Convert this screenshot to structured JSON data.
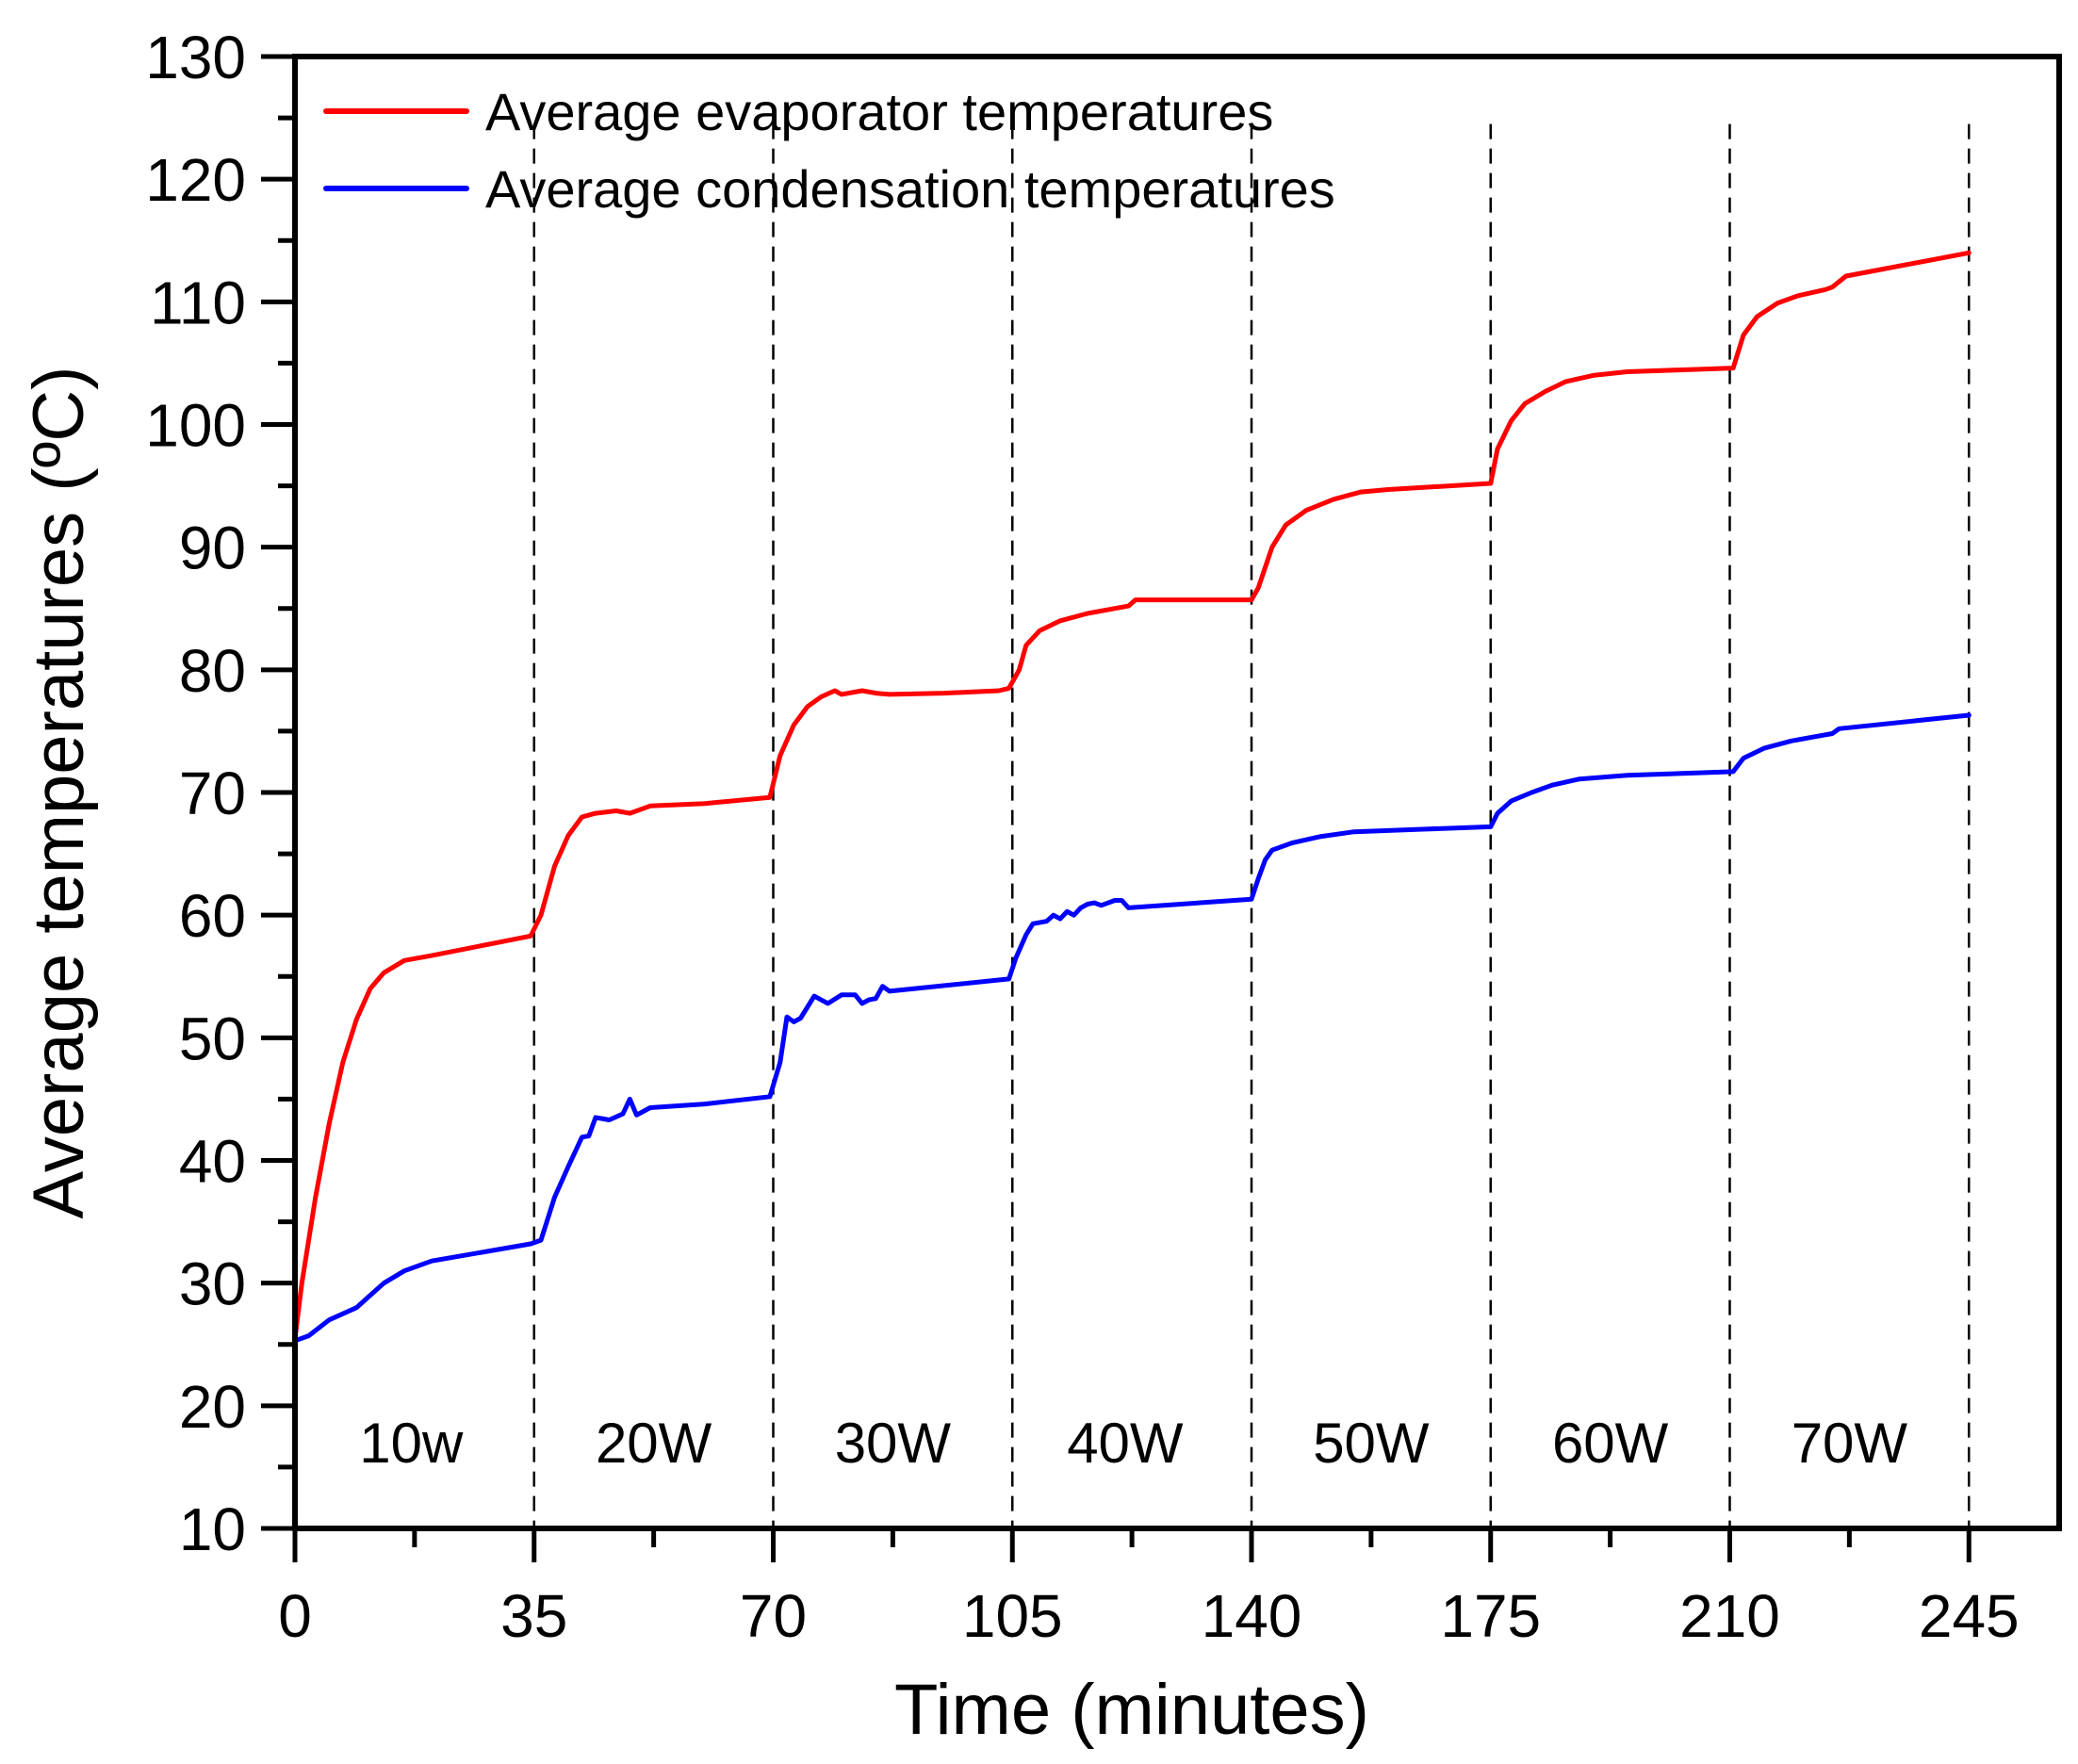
{
  "chart_data": {
    "type": "line",
    "title": "",
    "xlabel": "Time (minutes)",
    "ylabel": "Average temperatures (ºC)",
    "xlim": [
      0,
      255
    ],
    "ylim": [
      10,
      130
    ],
    "xticks": [
      0,
      35,
      70,
      105,
      140,
      175,
      210,
      245
    ],
    "xtick_labels": [
      "0",
      "35",
      "70",
      "105",
      "140",
      "175",
      "210",
      "245"
    ],
    "x_minor_ticks": [
      17.5,
      52.5,
      87.5,
      122.5,
      157.5,
      192.5,
      227.5
    ],
    "yticks": [
      10,
      20,
      30,
      40,
      50,
      60,
      70,
      80,
      90,
      100,
      110,
      120,
      130
    ],
    "ytick_labels": [
      "10",
      "20",
      "30",
      "40",
      "50",
      "60",
      "70",
      "80",
      "90",
      "100",
      "110",
      "120",
      "130"
    ],
    "y_minor_ticks": [
      15,
      25,
      35,
      45,
      55,
      65,
      75,
      85,
      95,
      105,
      115,
      125
    ],
    "grid": false,
    "legend_position": "top-left",
    "dividers": [
      35,
      70,
      105,
      140,
      175,
      210,
      245
    ],
    "regions": [
      {
        "label": "10w",
        "x": 17
      },
      {
        "label": "20W",
        "x": 52.5
      },
      {
        "label": "30W",
        "x": 87.5
      },
      {
        "label": "40W",
        "x": 121.5
      },
      {
        "label": "50W",
        "x": 157.5
      },
      {
        "label": "60W",
        "x": 192.5
      },
      {
        "label": "70W",
        "x": 227.5
      }
    ],
    "series": [
      {
        "name": "Average evaporator temperatures",
        "color": "#ff0000",
        "x": [
          0,
          1,
          3,
          5,
          7,
          9,
          11,
          13,
          16,
          20,
          34.5,
          36,
          38,
          40,
          42,
          44,
          47,
          49,
          52,
          60,
          69.5,
          71,
          73,
          75,
          77,
          79,
          80,
          83,
          85,
          87,
          95,
          103,
          104.5,
          106,
          107,
          109,
          112,
          116,
          120,
          122,
          123,
          140,
          141,
          143,
          145,
          148,
          152,
          156,
          160,
          175,
          176,
          178,
          180,
          183,
          186,
          190,
          195,
          210.5,
          212,
          214,
          217,
          220,
          224,
          225,
          227,
          245
        ],
        "y": [
          25.5,
          30,
          37,
          43,
          48,
          51.5,
          54,
          55.3,
          56.3,
          56.7,
          58.3,
          60,
          64,
          66.5,
          68,
          68.3,
          68.5,
          68.3,
          68.9,
          69.1,
          69.6,
          73,
          75.5,
          77,
          77.8,
          78.3,
          78.0,
          78.3,
          78.1,
          78.0,
          78.1,
          78.3,
          78.5,
          80,
          82,
          83.2,
          84,
          84.6,
          85,
          85.2,
          85.7,
          85.7,
          86.7,
          90,
          91.8,
          93,
          93.9,
          94.5,
          94.7,
          95.2,
          98,
          100.3,
          101.7,
          102.7,
          103.5,
          104,
          104.3,
          104.6,
          107.3,
          108.8,
          109.9,
          110.5,
          111,
          111.2,
          112.1,
          114
        ]
      },
      {
        "name": "Average condensation temperatures",
        "color": "#0000ff",
        "x": [
          0,
          2,
          5,
          9,
          13,
          16,
          20,
          34.5,
          36,
          38,
          40,
          42,
          43,
          44,
          46,
          48,
          49,
          50,
          52,
          60,
          69.5,
          71,
          72,
          73,
          74,
          76,
          78,
          80,
          82,
          83,
          84,
          85,
          86,
          87,
          104.5,
          105.5,
          107,
          108,
          110,
          111,
          112,
          113,
          114,
          115,
          116,
          117,
          118,
          120,
          121,
          122,
          140,
          141,
          142,
          143,
          146,
          150,
          155,
          165,
          175,
          176,
          178,
          181,
          184,
          188,
          195,
          210.5,
          212,
          215,
          219,
          223,
          225,
          226,
          245
        ],
        "y": [
          25.3,
          25.7,
          27,
          28,
          30,
          31,
          31.8,
          33.2,
          33.5,
          37,
          39.5,
          41.9,
          42,
          43.5,
          43.3,
          43.8,
          45,
          43.7,
          44.3,
          44.6,
          45.2,
          48,
          51.7,
          51.3,
          51.6,
          53.4,
          52.8,
          53.5,
          53.5,
          52.8,
          53.1,
          53.2,
          54.2,
          53.8,
          54.8,
          56.5,
          58.4,
          59.3,
          59.5,
          60,
          59.7,
          60.3,
          60,
          60.6,
          60.9,
          61,
          60.8,
          61.2,
          61.2,
          60.6,
          61.3,
          63,
          64.5,
          65.3,
          65.9,
          66.4,
          66.8,
          67,
          67.2,
          68.3,
          69.3,
          70,
          70.6,
          71.1,
          71.4,
          71.7,
          72.8,
          73.6,
          74.2,
          74.6,
          74.8,
          75.2,
          76.3
        ]
      }
    ]
  }
}
